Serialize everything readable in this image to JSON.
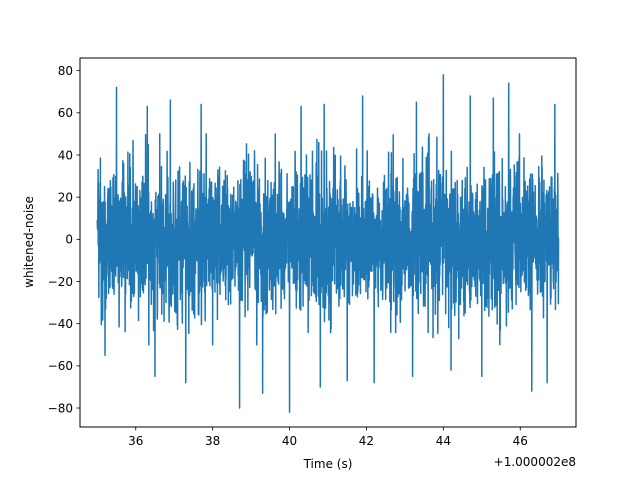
{
  "chart_data": {
    "type": "line",
    "title": "",
    "xlabel": "Time (s)",
    "ylabel": "whitened-noise",
    "x_offset_label": "+1.000002e8",
    "xlim": [
      34.55,
      47.45
    ],
    "ylim": [
      -89,
      86
    ],
    "x_ticks": [
      36,
      38,
      40,
      42,
      44,
      46
    ],
    "x_tick_labels": [
      "36",
      "38",
      "40",
      "42",
      "44",
      "46"
    ],
    "y_ticks": [
      -80,
      -60,
      -40,
      -20,
      0,
      20,
      40,
      60,
      80
    ],
    "y_tick_labels": [
      "−80",
      "−60",
      "−40",
      "−20",
      "0",
      "20",
      "40",
      "60",
      "80"
    ],
    "grid": false,
    "series": [
      {
        "color": "#1f77b4",
        "x_range": [
          35.0,
          47.0
        ],
        "typical_envelope": [
          -40,
          40
        ],
        "max": 78,
        "min": -82,
        "spikes": [
          {
            "x": 35.5,
            "y": 72
          },
          {
            "x": 36.3,
            "y": 63
          },
          {
            "x": 36.9,
            "y": 66
          },
          {
            "x": 37.7,
            "y": 64
          },
          {
            "x": 40.3,
            "y": 63
          },
          {
            "x": 40.9,
            "y": 64
          },
          {
            "x": 41.9,
            "y": 68
          },
          {
            "x": 43.3,
            "y": 65
          },
          {
            "x": 44.0,
            "y": 78
          },
          {
            "x": 44.7,
            "y": 68
          },
          {
            "x": 45.3,
            "y": 67
          },
          {
            "x": 45.7,
            "y": 74
          },
          {
            "x": 46.9,
            "y": 64
          },
          {
            "x": 35.2,
            "y": -55
          },
          {
            "x": 36.5,
            "y": -65
          },
          {
            "x": 37.3,
            "y": -68
          },
          {
            "x": 38.7,
            "y": -80
          },
          {
            "x": 39.3,
            "y": -73
          },
          {
            "x": 40.0,
            "y": -82
          },
          {
            "x": 40.8,
            "y": -70
          },
          {
            "x": 41.5,
            "y": -67
          },
          {
            "x": 42.2,
            "y": -68
          },
          {
            "x": 43.2,
            "y": -65
          },
          {
            "x": 44.2,
            "y": -62
          },
          {
            "x": 45.0,
            "y": -65
          },
          {
            "x": 46.3,
            "y": -72
          },
          {
            "x": 46.7,
            "y": -68
          }
        ]
      }
    ]
  }
}
